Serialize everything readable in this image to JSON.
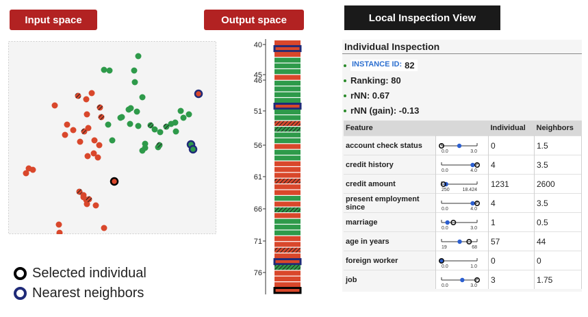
{
  "header": {
    "input_title": "Input space",
    "output_title": "Output  space",
    "local_title": "Local Inspection View"
  },
  "colors": {
    "pill_red": "#b22222",
    "dark": "#1a1a1a",
    "red": "#d9472b",
    "green": "#2e9a4a",
    "blue": "#1f2a78"
  },
  "legend": {
    "selected": "Selected individual",
    "neighbors": "Nearest neighbors"
  },
  "output_axis": {
    "ticks": [
      "40",
      "45",
      "46",
      "51",
      "56",
      "61",
      "66",
      "71",
      "76"
    ],
    "rows": [
      "r",
      "n",
      "r",
      "g",
      "g",
      "g",
      "r",
      "g",
      "g",
      "g",
      "g",
      "n",
      "g",
      "g",
      "s",
      "s",
      "g",
      "g",
      "r",
      "g",
      "g",
      "r",
      "r",
      "r",
      "s",
      "r",
      "r",
      "g",
      "r",
      "s",
      "r",
      "g",
      "g",
      "g",
      "r",
      "r",
      "s",
      "r",
      "n",
      "s",
      "r",
      "r",
      "r",
      "k"
    ]
  },
  "inspection": {
    "title": "Individual Inspection",
    "instance_label": "INSTANCE ID:",
    "instance_value": "82",
    "ranking": "Ranking: 80",
    "rnn": "rNN: 0.67",
    "rnn_gain": "rNN (gain): -0.13",
    "columns": [
      "Feature",
      "Individual",
      "Neighbors"
    ],
    "rows": [
      {
        "feature": "account check status",
        "min": "0.0",
        "max": "3.0",
        "ind": "0",
        "nbr": "1.5",
        "lo": 0,
        "hi": 3,
        "ival": 0,
        "nval": 1.5
      },
      {
        "feature": "credit history",
        "min": "0.0",
        "max": "4.0",
        "ind": "4",
        "nbr": "3.5",
        "lo": 0,
        "hi": 4,
        "ival": 4,
        "nval": 3.5
      },
      {
        "feature": "credit amount",
        "min": "250",
        "max": "18.424",
        "ind": "1231",
        "nbr": "2600",
        "lo": 250,
        "hi": 18424,
        "ival": 1231,
        "nval": 2600
      },
      {
        "feature": "present employment since",
        "min": "0.0",
        "max": "4.0",
        "ind": "4",
        "nbr": "3.5",
        "lo": 0,
        "hi": 4,
        "ival": 4,
        "nval": 3.5
      },
      {
        "feature": "marriage",
        "min": "0.0",
        "max": "3.0",
        "ind": "1",
        "nbr": "0.5",
        "lo": 0,
        "hi": 3,
        "ival": 1,
        "nval": 0.5
      },
      {
        "feature": "age in years",
        "min": "19",
        "max": "68",
        "ind": "57",
        "nbr": "44",
        "lo": 19,
        "hi": 68,
        "ival": 57,
        "nval": 44
      },
      {
        "feature": "foreign worker",
        "min": "0.0",
        "max": "1.0",
        "ind": "0",
        "nbr": "0",
        "lo": 0,
        "hi": 1,
        "ival": 0,
        "nval": 0
      },
      {
        "feature": "job",
        "min": "0.0",
        "max": "3.0",
        "ind": "3",
        "nbr": "1.75",
        "lo": 0,
        "hi": 3,
        "ival": 3,
        "nval": 1.75
      }
    ]
  }
}
